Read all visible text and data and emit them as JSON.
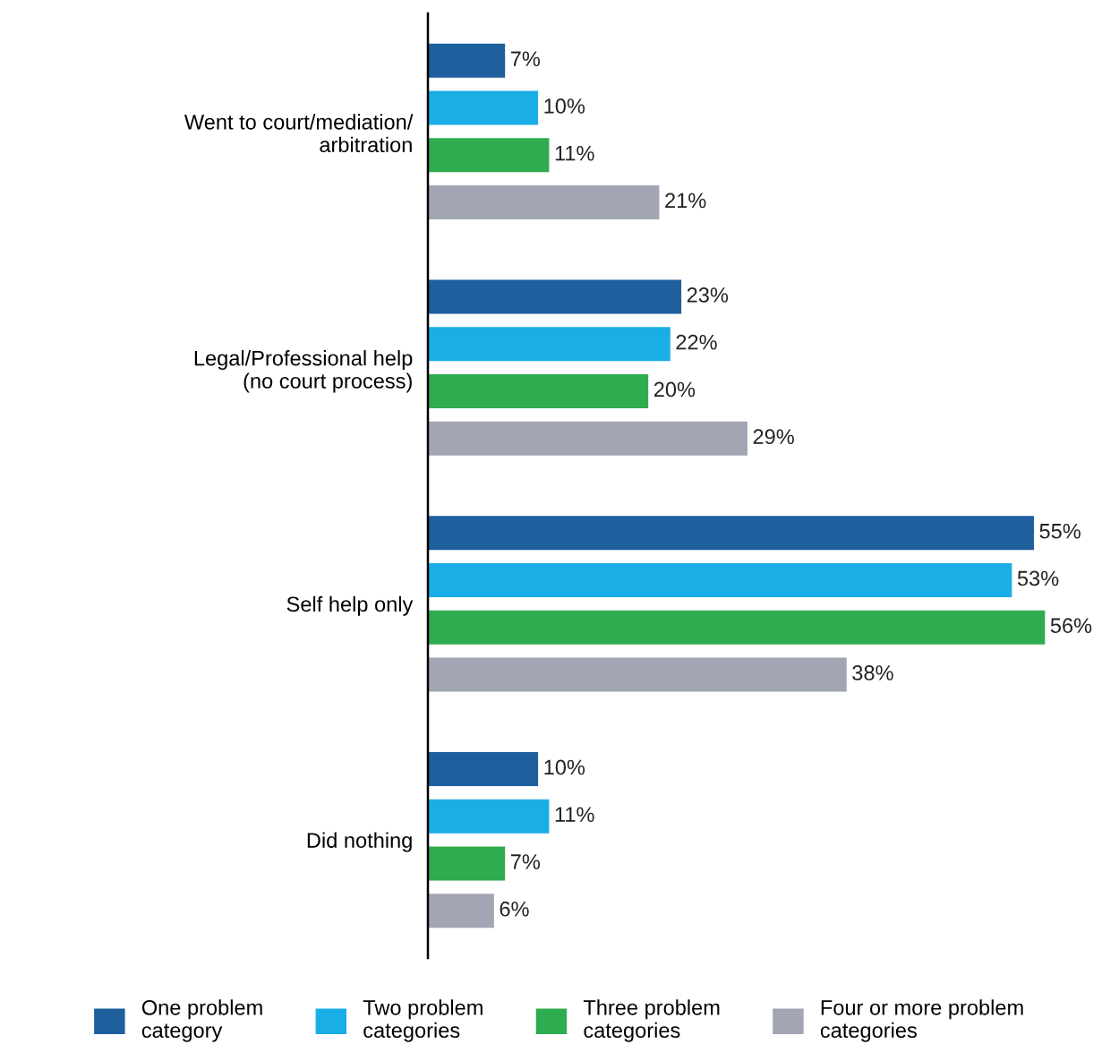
{
  "chart_data": {
    "type": "bar",
    "orientation": "horizontal",
    "categories": [
      "Went to court/mediation/\narbitration",
      "Legal/Professional help\n(no court process)",
      "Self help only",
      "Did nothing"
    ],
    "series": [
      {
        "name": "One problem\ncategory",
        "color": "#1f5f9e",
        "values": [
          7,
          23,
          55,
          10
        ],
        "value_labels": [
          "7%",
          "23%",
          "55%",
          "10%"
        ]
      },
      {
        "name": "Two problem\ncategories",
        "color": "#1aaee6",
        "values": [
          10,
          22,
          53,
          11
        ],
        "value_labels": [
          "10%",
          "22%",
          "53%",
          "11%"
        ]
      },
      {
        "name": "Three problem\ncategories",
        "color": "#2eac4f",
        "values": [
          11,
          20,
          56,
          7
        ],
        "value_labels": [
          "11%",
          "20%",
          "56%",
          "7%"
        ]
      },
      {
        "name": "Four or more problem\ncategories",
        "color": "#a2a5b3",
        "values": [
          21,
          29,
          38,
          6
        ],
        "value_labels": [
          "21%",
          "29%",
          "38%",
          "6%"
        ]
      }
    ],
    "legend": "bottom",
    "grid": false,
    "tick_labels": "y"
  }
}
